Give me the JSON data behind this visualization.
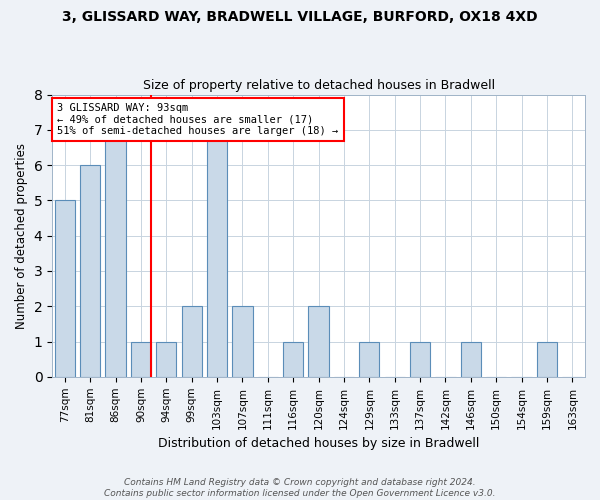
{
  "title_line1": "3, GLISSARD WAY, BRADWELL VILLAGE, BURFORD, OX18 4XD",
  "title_line2": "Size of property relative to detached houses in Bradwell",
  "xlabel": "Distribution of detached houses by size in Bradwell",
  "ylabel": "Number of detached properties",
  "footnote": "Contains HM Land Registry data © Crown copyright and database right 2024.\nContains public sector information licensed under the Open Government Licence v3.0.",
  "categories": [
    "77sqm",
    "81sqm",
    "86sqm",
    "90sqm",
    "94sqm",
    "99sqm",
    "103sqm",
    "107sqm",
    "111sqm",
    "116sqm",
    "120sqm",
    "124sqm",
    "129sqm",
    "133sqm",
    "137sqm",
    "142sqm",
    "146sqm",
    "150sqm",
    "154sqm",
    "159sqm",
    "163sqm"
  ],
  "values": [
    5,
    6,
    7,
    1,
    1,
    2,
    7,
    2,
    0,
    1,
    2,
    0,
    1,
    0,
    1,
    0,
    1,
    0,
    0,
    1,
    0
  ],
  "bar_color": "#c9d9e8",
  "bar_edge_color": "#5b8db8",
  "annotation_line1": "3 GLISSARD WAY: 93sqm",
  "annotation_line2": "← 49% of detached houses are smaller (17)",
  "annotation_line3": "51% of semi-detached houses are larger (18) →",
  "annotation_box_color": "white",
  "annotation_box_edge_color": "red",
  "ylim": [
    0,
    8
  ],
  "yticks": [
    0,
    1,
    2,
    3,
    4,
    5,
    6,
    7,
    8
  ],
  "background_color": "#eef2f7",
  "plot_bg_color": "white",
  "title_fontsize": 10,
  "subtitle_fontsize": 9,
  "red_line_x": 3.4,
  "footnote_fontsize": 6.5
}
